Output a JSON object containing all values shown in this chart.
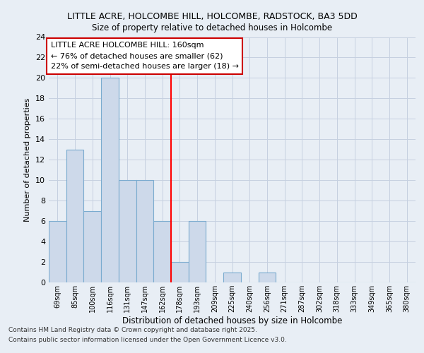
{
  "title1": "LITTLE ACRE, HOLCOMBE HILL, HOLCOMBE, RADSTOCK, BA3 5DD",
  "title2": "Size of property relative to detached houses in Holcombe",
  "xlabel": "Distribution of detached houses by size in Holcombe",
  "ylabel": "Number of detached properties",
  "bins": [
    "69sqm",
    "85sqm",
    "100sqm",
    "116sqm",
    "131sqm",
    "147sqm",
    "162sqm",
    "178sqm",
    "193sqm",
    "209sqm",
    "225sqm",
    "240sqm",
    "256sqm",
    "271sqm",
    "287sqm",
    "302sqm",
    "318sqm",
    "333sqm",
    "349sqm",
    "365sqm",
    "380sqm"
  ],
  "values": [
    6,
    13,
    7,
    20,
    10,
    10,
    6,
    2,
    6,
    0,
    1,
    0,
    1,
    0,
    0,
    0,
    0,
    0,
    0,
    0,
    0
  ],
  "bar_color": "#cdd9ea",
  "bar_edge_color": "#7aabcf",
  "redline_bin_index": 6,
  "ylim": [
    0,
    24
  ],
  "yticks": [
    0,
    2,
    4,
    6,
    8,
    10,
    12,
    14,
    16,
    18,
    20,
    22,
    24
  ],
  "annotation_title": "LITTLE ACRE HOLCOMBE HILL: 160sqm",
  "annotation_line1": "← 76% of detached houses are smaller (62)",
  "annotation_line2": "22% of semi-detached houses are larger (18) →",
  "annotation_box_color": "#ffffff",
  "annotation_box_edge_color": "#cc0000",
  "footer1": "Contains HM Land Registry data © Crown copyright and database right 2025.",
  "footer2": "Contains public sector information licensed under the Open Government Licence v3.0.",
  "fig_bg_color": "#e8eef5",
  "plot_bg_color": "#e8eef5",
  "grid_color": "#c5d0e0"
}
